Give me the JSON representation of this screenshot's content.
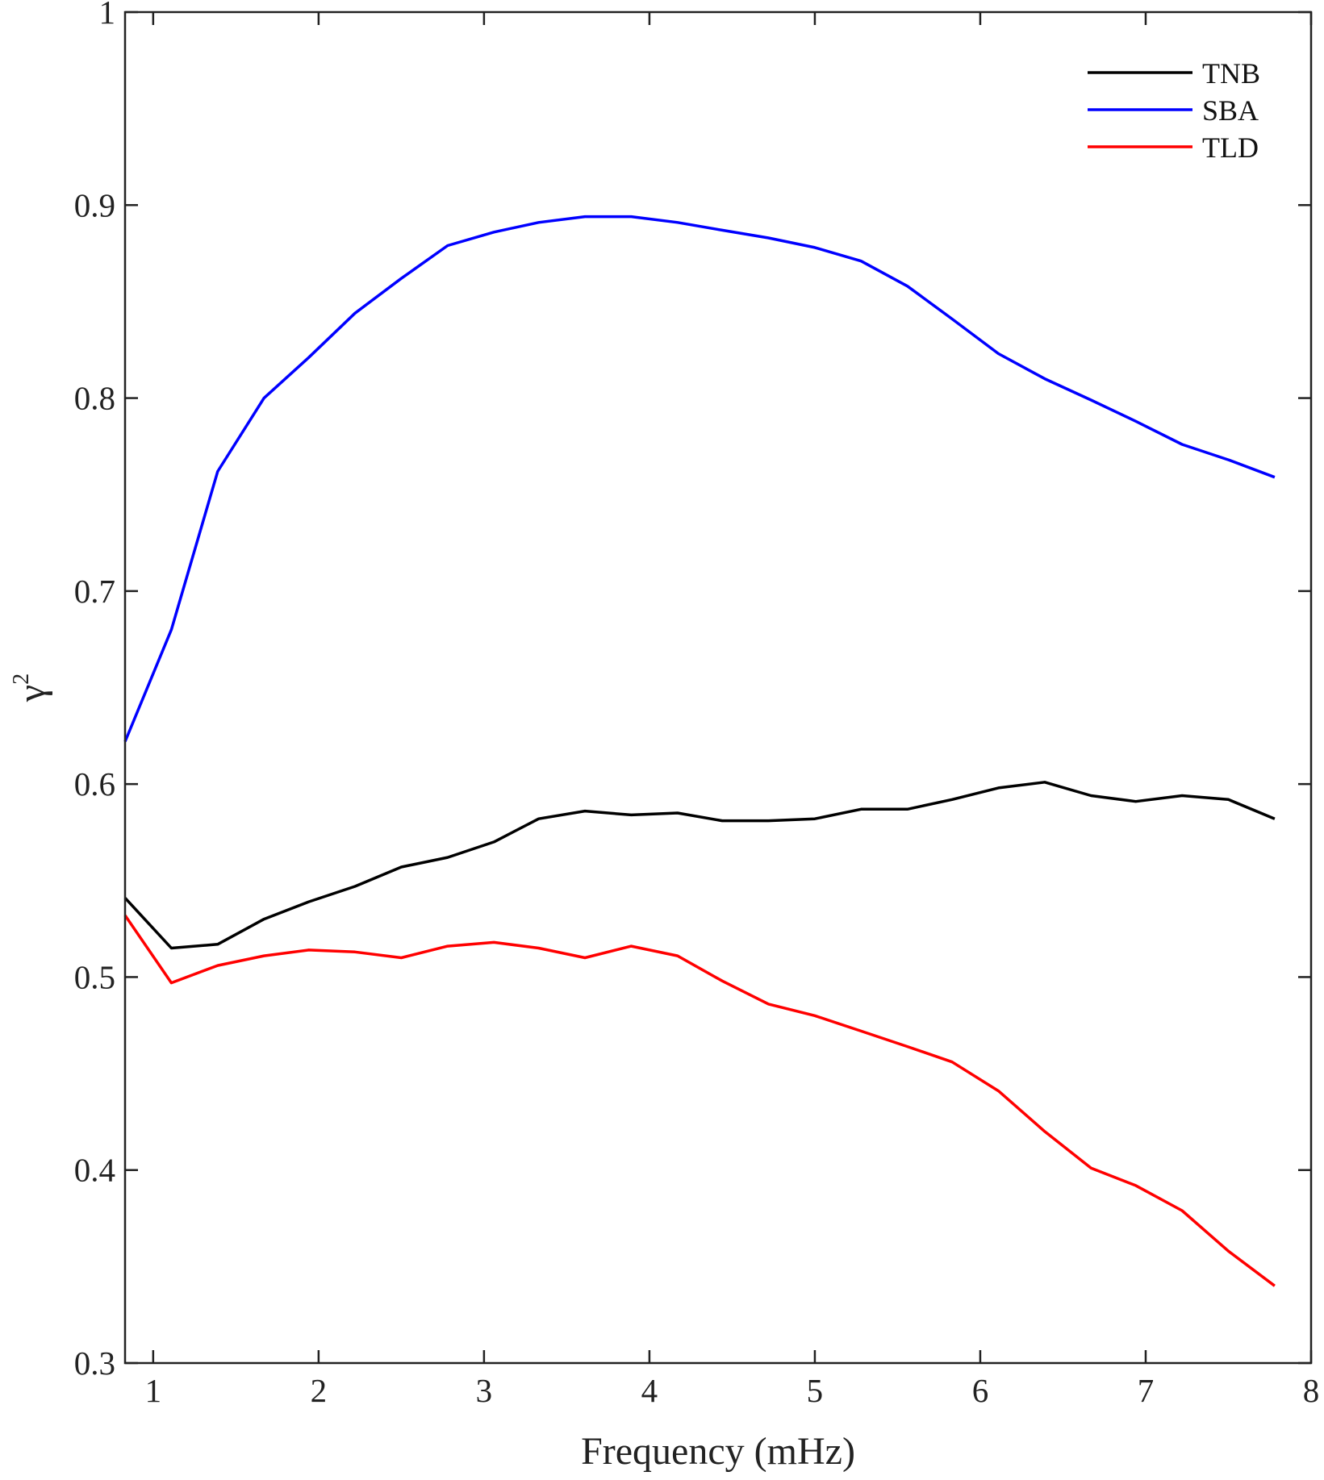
{
  "chart_data": {
    "type": "line",
    "title": "",
    "xlabel": "Frequency (mHz)",
    "ylabel": "γ",
    "ylabel_superscript": "2",
    "xlim": [
      0.83,
      8.0
    ],
    "ylim": [
      0.3,
      1.0
    ],
    "xticks": [
      1,
      2,
      3,
      4,
      5,
      6,
      7,
      8
    ],
    "yticks": [
      0.3,
      0.4,
      0.5,
      0.6,
      0.7,
      0.8,
      0.9,
      1.0
    ],
    "xtick_labels": [
      "1",
      "2",
      "3",
      "4",
      "5",
      "6",
      "7",
      "8"
    ],
    "ytick_labels": [
      "0.3",
      "0.4",
      "0.5",
      "0.6",
      "0.7",
      "0.8",
      "0.9",
      "1"
    ],
    "grid": false,
    "legend_position": "top-right",
    "x": [
      0.83,
      1.11,
      1.39,
      1.67,
      1.94,
      2.22,
      2.5,
      2.78,
      3.06,
      3.33,
      3.61,
      3.89,
      4.17,
      4.44,
      4.72,
      5.0,
      5.28,
      5.56,
      5.83,
      6.11,
      6.39,
      6.67,
      6.94,
      7.22,
      7.5,
      7.78
    ],
    "series": [
      {
        "name": "TNB",
        "color": "#000000",
        "values": [
          0.541,
          0.515,
          0.517,
          0.53,
          0.539,
          0.547,
          0.557,
          0.562,
          0.57,
          0.582,
          0.586,
          0.584,
          0.585,
          0.581,
          0.581,
          0.582,
          0.587,
          0.587,
          0.592,
          0.598,
          0.601,
          0.594,
          0.591,
          0.594,
          0.592,
          0.582
        ]
      },
      {
        "name": "SBA",
        "color": "#0000ff",
        "values": [
          0.622,
          0.68,
          0.762,
          0.8,
          0.821,
          0.844,
          0.862,
          0.879,
          0.886,
          0.891,
          0.894,
          0.894,
          0.891,
          0.887,
          0.883,
          0.878,
          0.871,
          0.858,
          0.841,
          0.823,
          0.81,
          0.799,
          0.788,
          0.776,
          0.768,
          0.759
        ]
      },
      {
        "name": "TLD",
        "color": "#ff0000",
        "values": [
          0.532,
          0.497,
          0.506,
          0.511,
          0.514,
          0.513,
          0.51,
          0.516,
          0.518,
          0.515,
          0.51,
          0.516,
          0.511,
          0.498,
          0.486,
          0.48,
          0.472,
          0.464,
          0.456,
          0.441,
          0.42,
          0.401,
          0.392,
          0.379,
          0.358,
          0.34
        ]
      }
    ]
  }
}
